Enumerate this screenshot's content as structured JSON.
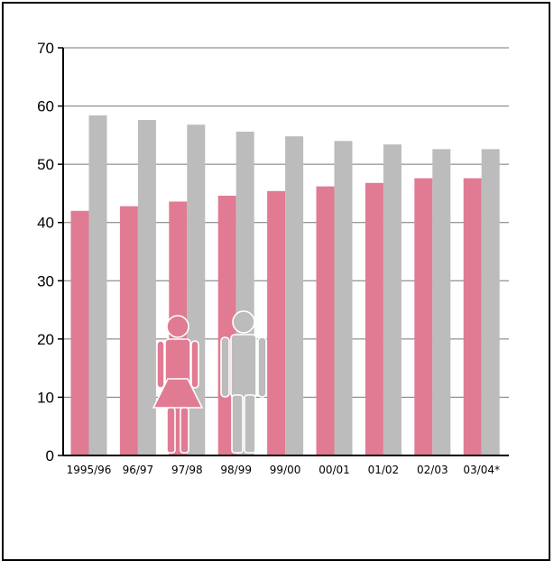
{
  "chart_data": {
    "type": "bar",
    "title": "",
    "xlabel": "",
    "ylabel": "",
    "categories": [
      "1995/96",
      "96/97",
      "97/98",
      "98/99",
      "99/00",
      "00/01",
      "01/02",
      "02/03",
      "03/04*"
    ],
    "series": [
      {
        "values": [
          42,
          42.8,
          43.6,
          44.6,
          45.4,
          46.2,
          46.8,
          47.6,
          47.6
        ]
      },
      {
        "values": [
          58.4,
          57.6,
          56.8,
          55.6,
          54.8,
          54,
          53.4,
          52.6,
          52.6
        ]
      }
    ],
    "ylim": [
      0,
      70
    ],
    "yticks": [
      "0",
      "10",
      "20",
      "30",
      "40",
      "50",
      "60",
      "70"
    ],
    "grid": true,
    "legend": "none",
    "legend_icons": [
      "female-figure-icon",
      "male-figure-icon"
    ],
    "colors": {
      "series": [
        "#e07b93",
        "#bcbcbc"
      ],
      "grid": "#777777",
      "axis": "#000000",
      "icon_outline": "#ffffff"
    }
  }
}
